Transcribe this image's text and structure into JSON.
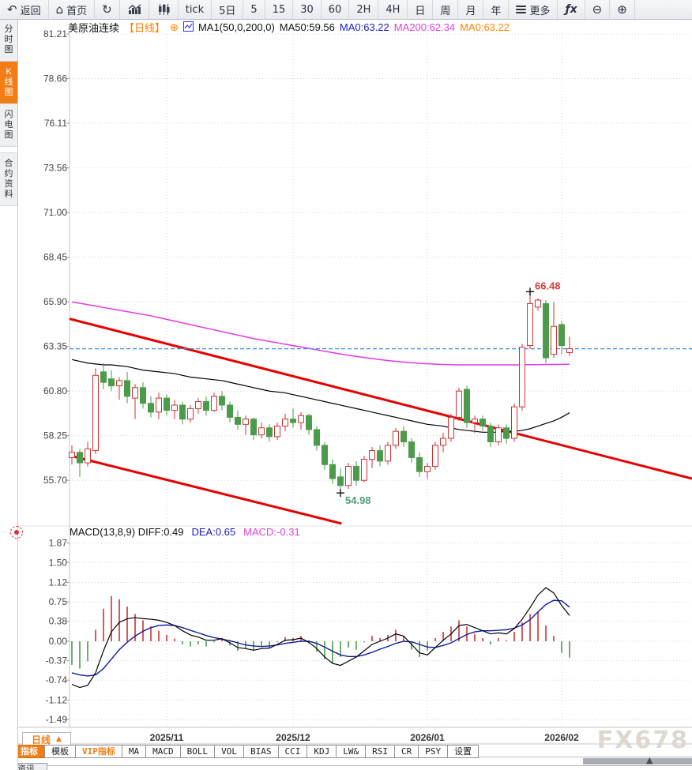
{
  "toolbar": {
    "items": [
      {
        "name": "back-button",
        "icon": "back",
        "label": "返回"
      },
      {
        "name": "home-button",
        "icon": "home",
        "label": "首页"
      },
      {
        "name": "refresh-button",
        "icon": "refresh",
        "label": ""
      },
      {
        "name": "bar-chart-view-button",
        "icon": "bars-chart",
        "label": ""
      },
      {
        "name": "candle-chart-view-button",
        "icon": "candles-chart",
        "label": ""
      },
      {
        "name": "period-tick-button",
        "icon": "",
        "label": "tick"
      },
      {
        "name": "period-5d-button",
        "icon": "",
        "label": "5日"
      },
      {
        "name": "period-5m-button",
        "icon": "",
        "label": "5"
      },
      {
        "name": "period-15m-button",
        "icon": "",
        "label": "15"
      },
      {
        "name": "period-30m-button",
        "icon": "",
        "label": "30"
      },
      {
        "name": "period-60m-button",
        "icon": "",
        "label": "60"
      },
      {
        "name": "period-2h-button",
        "icon": "",
        "label": "2H"
      },
      {
        "name": "period-4h-button",
        "icon": "",
        "label": "4H"
      },
      {
        "name": "period-day-button",
        "icon": "",
        "label": "日"
      },
      {
        "name": "period-week-button",
        "icon": "",
        "label": "周"
      },
      {
        "name": "period-month-button",
        "icon": "",
        "label": "月"
      },
      {
        "name": "period-year-button",
        "icon": "",
        "label": "年"
      },
      {
        "name": "more-button",
        "icon": "menu",
        "label": "更多"
      },
      {
        "name": "fx-indicator-button",
        "icon": "fx",
        "label": ""
      },
      {
        "name": "zoom-out-button",
        "icon": "zoom-out",
        "label": ""
      },
      {
        "name": "zoom-in-button",
        "icon": "zoom-in",
        "label": ""
      }
    ],
    "glyphs": {
      "back": "↶",
      "home": "⌂",
      "refresh": "↻",
      "zoom-out": "⊖",
      "zoom-in": "⊕",
      "fx": "ƒx"
    }
  },
  "sidebar": {
    "items": [
      {
        "name": "sidebar-item-time-chart",
        "label": "分时图",
        "active": false
      },
      {
        "name": "sidebar-item-kline-chart",
        "label": "K线图",
        "active": true
      },
      {
        "name": "sidebar-item-lightning-chart",
        "label": "闪电图",
        "active": false
      },
      {
        "name": "sidebar-item-contract-info",
        "label": "合约资料",
        "active": false
      }
    ],
    "partial_tab": "资讯"
  },
  "symbol_bar": {
    "name": "美原油连续",
    "period_tag": "【日线】",
    "plus_icon": "⊕",
    "ma_settings": "MA1(50,0,200,0)",
    "ma50": "MA50:59.56",
    "ma0_blue": "MA0:63.22",
    "ma200": "MA200:62.34",
    "ma0_orange": "MA0:63.22"
  },
  "macd_bar": {
    "label": "MACD(13,8,9)",
    "diff": "DIFF:0.49",
    "dea": "DEA:0.65",
    "macd": "MACD:-0.31"
  },
  "bottom": {
    "period_tab": "日线",
    "period_arrow": "▲",
    "scroll_arrow": "▲",
    "indicator_tabs": [
      {
        "label": "指标",
        "style": "active"
      },
      {
        "label": "模板",
        "style": ""
      },
      {
        "label": "VIP指标",
        "style": "vip"
      },
      {
        "label": "MA",
        "style": ""
      },
      {
        "label": "MACD",
        "style": ""
      },
      {
        "label": "BOLL",
        "style": ""
      },
      {
        "label": "VOL",
        "style": ""
      },
      {
        "label": "BIAS",
        "style": ""
      },
      {
        "label": "CCI",
        "style": ""
      },
      {
        "label": "KDJ",
        "style": ""
      },
      {
        "label": "LW&",
        "style": ""
      },
      {
        "label": "RSI",
        "style": ""
      },
      {
        "label": "CR",
        "style": ""
      },
      {
        "label": "PSY",
        "style": ""
      },
      {
        "label": "设置",
        "style": ""
      }
    ]
  },
  "watermark": "FX678",
  "colors": {
    "up": "#cb3335",
    "down": "#4a9b4a",
    "ma50": "#000000",
    "ma200": "#e23ae2",
    "diff": "#000000",
    "dea": "#101c9e",
    "trend": "#e60000",
    "price_line": "#3e8ede",
    "grid": "#cfd4da",
    "axis": "#c0c5cb",
    "label": "#444444",
    "high_label": "#d43c3c",
    "low_label": "#4fa07a",
    "accent": "#f07d15"
  },
  "chart_data": {
    "type": "candlestick+macd",
    "title": "美原油连续 日线",
    "price_ticks": [
      "81.21",
      "78.66",
      "76.11",
      "73.56",
      "71.00",
      "68.45",
      "65.90",
      "63.35",
      "60.80",
      "58.25",
      "55.70"
    ],
    "macd_ticks": [
      "1.87",
      "1.50",
      "1.12",
      "0.75",
      "0.38",
      "0.00",
      "-0.37",
      "-0.74",
      "-1.12",
      "-1.49"
    ],
    "months": [
      {
        "label": "2025/11",
        "index": 12
      },
      {
        "label": "2025/12",
        "index": 28
      },
      {
        "label": "2026/01",
        "index": 45
      },
      {
        "label": "2026/02",
        "index": 62
      }
    ],
    "current_price_line": 63.22,
    "annotations": {
      "high": {
        "index": 58,
        "price": 66.48,
        "label": "66.48"
      },
      "low": {
        "index": 34,
        "price": 54.98,
        "label": "54.98"
      }
    },
    "trendlines": [
      {
        "frac1": 0.0,
        "price1": 64.93,
        "frac2": 1.0,
        "price2": 55.8
      },
      {
        "frac1": 0.0,
        "price1": 57.12,
        "frac2": 0.437,
        "price2": 53.23
      }
    ],
    "candles": [
      [
        57.0,
        57.7,
        56.6,
        57.3
      ],
      [
        57.3,
        57.5,
        55.9,
        56.7
      ],
      [
        56.7,
        57.9,
        56.5,
        57.5
      ],
      [
        57.4,
        62.1,
        57.2,
        61.7
      ],
      [
        61.9,
        62.4,
        60.9,
        61.3
      ],
      [
        61.5,
        62.0,
        60.8,
        61.1
      ],
      [
        61.1,
        61.6,
        60.3,
        61.4
      ],
      [
        61.4,
        61.9,
        60.1,
        60.5
      ],
      [
        60.4,
        61.2,
        59.2,
        61.0
      ],
      [
        61.0,
        61.3,
        59.8,
        60.1
      ],
      [
        60.1,
        60.5,
        59.3,
        59.6
      ],
      [
        59.6,
        60.7,
        59.2,
        60.4
      ],
      [
        60.4,
        60.6,
        59.4,
        59.7
      ],
      [
        59.7,
        60.3,
        59.2,
        60.0
      ],
      [
        60.0,
        60.2,
        58.9,
        59.2
      ],
      [
        59.2,
        60.0,
        59.0,
        59.8
      ],
      [
        59.8,
        60.4,
        59.5,
        60.2
      ],
      [
        60.2,
        60.5,
        59.4,
        59.7
      ],
      [
        59.7,
        60.7,
        59.6,
        60.5
      ],
      [
        60.5,
        60.8,
        59.7,
        60.0
      ],
      [
        60.0,
        60.2,
        59.0,
        59.3
      ],
      [
        59.3,
        59.7,
        58.6,
        58.9
      ],
      [
        58.9,
        59.4,
        58.3,
        59.2
      ],
      [
        59.2,
        59.3,
        58.0,
        58.3
      ],
      [
        58.3,
        59.0,
        58.1,
        58.7
      ],
      [
        58.7,
        58.9,
        57.9,
        58.2
      ],
      [
        58.2,
        59.0,
        58.0,
        58.8
      ],
      [
        58.8,
        59.5,
        58.5,
        59.2
      ],
      [
        59.2,
        59.8,
        58.7,
        59.0
      ],
      [
        59.0,
        59.6,
        58.6,
        59.4
      ],
      [
        59.4,
        59.5,
        58.3,
        58.6
      ],
      [
        58.6,
        58.8,
        57.4,
        57.7
      ],
      [
        57.7,
        57.9,
        56.3,
        56.6
      ],
      [
        56.6,
        56.9,
        55.5,
        55.8
      ],
      [
        55.9,
        56.4,
        54.98,
        55.4
      ],
      [
        55.4,
        56.7,
        55.2,
        56.5
      ],
      [
        56.5,
        56.8,
        55.4,
        55.7
      ],
      [
        55.7,
        57.1,
        55.6,
        56.9
      ],
      [
        56.9,
        57.6,
        56.4,
        57.4
      ],
      [
        57.4,
        57.7,
        56.5,
        56.8
      ],
      [
        56.8,
        57.9,
        56.6,
        57.7
      ],
      [
        57.7,
        58.7,
        57.5,
        58.5
      ],
      [
        58.5,
        58.8,
        57.6,
        57.9
      ],
      [
        57.9,
        58.1,
        56.7,
        57.0
      ],
      [
        57.0,
        57.3,
        55.9,
        56.2
      ],
      [
        56.2,
        56.7,
        55.8,
        56.5
      ],
      [
        56.5,
        57.9,
        56.3,
        57.7
      ],
      [
        57.7,
        58.4,
        57.3,
        58.1
      ],
      [
        58.1,
        59.5,
        57.9,
        59.3
      ],
      [
        59.3,
        61.0,
        59.1,
        60.8
      ],
      [
        60.9,
        61.1,
        58.7,
        59.0
      ],
      [
        59.0,
        59.4,
        58.4,
        59.2
      ],
      [
        59.2,
        59.4,
        58.5,
        58.8
      ],
      [
        58.8,
        59.0,
        57.6,
        57.9
      ],
      [
        57.9,
        58.9,
        57.7,
        58.7
      ],
      [
        58.7,
        58.9,
        57.8,
        58.1
      ],
      [
        58.1,
        60.1,
        57.9,
        59.9
      ],
      [
        59.9,
        63.5,
        59.7,
        63.3
      ],
      [
        63.4,
        66.48,
        63.2,
        65.8
      ],
      [
        65.6,
        66.1,
        65.4,
        66.0
      ],
      [
        65.8,
        66.0,
        62.4,
        62.7
      ],
      [
        62.9,
        65.9,
        62.7,
        64.5
      ],
      [
        64.6,
        64.8,
        62.9,
        63.4
      ],
      [
        63.0,
        63.9,
        62.8,
        63.22
      ]
    ],
    "ma50": [
      62.6,
      62.5,
      62.4,
      62.35,
      62.3,
      62.3,
      62.25,
      62.2,
      62.1,
      62.0,
      61.95,
      61.9,
      61.85,
      61.8,
      61.7,
      61.6,
      61.55,
      61.5,
      61.45,
      61.4,
      61.3,
      61.2,
      61.1,
      61.0,
      60.9,
      60.8,
      60.75,
      60.7,
      60.6,
      60.5,
      60.4,
      60.3,
      60.2,
      60.1,
      60.0,
      59.9,
      59.8,
      59.7,
      59.6,
      59.5,
      59.4,
      59.3,
      59.2,
      59.1,
      59.0,
      58.9,
      58.85,
      58.8,
      58.7,
      58.6,
      58.55,
      58.5,
      58.45,
      58.45,
      58.45,
      58.5,
      58.5,
      58.55,
      58.65,
      58.8,
      58.95,
      59.1,
      59.3,
      59.56
    ],
    "ma200": [
      65.9,
      65.82,
      65.74,
      65.66,
      65.58,
      65.5,
      65.42,
      65.34,
      65.26,
      65.18,
      65.1,
      65.0,
      64.9,
      64.8,
      64.7,
      64.6,
      64.5,
      64.4,
      64.3,
      64.2,
      64.1,
      64.0,
      63.9,
      63.8,
      63.72,
      63.64,
      63.56,
      63.48,
      63.4,
      63.32,
      63.24,
      63.16,
      63.08,
      63.0,
      62.92,
      62.85,
      62.78,
      62.72,
      62.66,
      62.6,
      62.55,
      62.5,
      62.46,
      62.42,
      62.39,
      62.36,
      62.34,
      62.32,
      62.31,
      62.3,
      62.3,
      62.3,
      62.3,
      62.3,
      62.3,
      62.3,
      62.3,
      62.3,
      62.31,
      62.31,
      62.32,
      62.32,
      62.33,
      62.34
    ],
    "diff": [
      -0.82,
      -0.88,
      -0.84,
      -0.6,
      -0.18,
      0.18,
      0.36,
      0.43,
      0.45,
      0.43,
      0.42,
      0.4,
      0.36,
      0.3,
      0.2,
      0.12,
      0.08,
      0.02,
      0.02,
      0.05,
      -0.03,
      -0.12,
      -0.14,
      -0.17,
      -0.14,
      -0.13,
      -0.06,
      0.02,
      0.03,
      0.06,
      -0.02,
      -0.14,
      -0.3,
      -0.42,
      -0.46,
      -0.38,
      -0.3,
      -0.18,
      -0.06,
      0.0,
      0.06,
      0.14,
      0.1,
      -0.06,
      -0.22,
      -0.26,
      -0.12,
      0.02,
      0.14,
      0.3,
      0.32,
      0.26,
      0.2,
      0.14,
      0.16,
      0.14,
      0.24,
      0.42,
      0.64,
      0.88,
      1.02,
      0.92,
      0.68,
      0.49
    ],
    "dea": [
      -0.6,
      -0.64,
      -0.66,
      -0.64,
      -0.52,
      -0.34,
      -0.16,
      -0.02,
      0.1,
      0.19,
      0.26,
      0.3,
      0.31,
      0.3,
      0.26,
      0.21,
      0.16,
      0.11,
      0.07,
      0.04,
      0.01,
      -0.03,
      -0.07,
      -0.09,
      -0.1,
      -0.09,
      -0.07,
      -0.04,
      -0.02,
      0.0,
      0.0,
      -0.04,
      -0.11,
      -0.19,
      -0.26,
      -0.29,
      -0.29,
      -0.26,
      -0.21,
      -0.15,
      -0.1,
      -0.04,
      0.0,
      -0.01,
      -0.06,
      -0.11,
      -0.12,
      -0.08,
      -0.03,
      0.05,
      0.13,
      0.18,
      0.2,
      0.2,
      0.21,
      0.22,
      0.25,
      0.31,
      0.41,
      0.56,
      0.7,
      0.78,
      0.77,
      0.65
    ],
    "hist": [
      -0.45,
      -0.52,
      -0.38,
      0.22,
      0.62,
      0.86,
      0.8,
      0.66,
      0.52,
      0.4,
      0.28,
      0.2,
      0.12,
      0.05,
      -0.06,
      -0.1,
      -0.06,
      -0.1,
      -0.02,
      0.05,
      -0.08,
      -0.18,
      -0.14,
      -0.18,
      -0.1,
      -0.12,
      -0.02,
      0.08,
      0.06,
      0.1,
      -0.04,
      -0.2,
      -0.34,
      -0.42,
      -0.3,
      -0.12,
      -0.16,
      -0.02,
      0.1,
      0.06,
      0.12,
      0.22,
      0.1,
      -0.16,
      -0.3,
      -0.18,
      0.06,
      0.18,
      0.28,
      0.4,
      0.28,
      0.14,
      0.06,
      -0.06,
      0.06,
      0.02,
      0.18,
      0.36,
      0.52,
      0.56,
      0.3,
      0.1,
      -0.22,
      -0.31
    ]
  }
}
